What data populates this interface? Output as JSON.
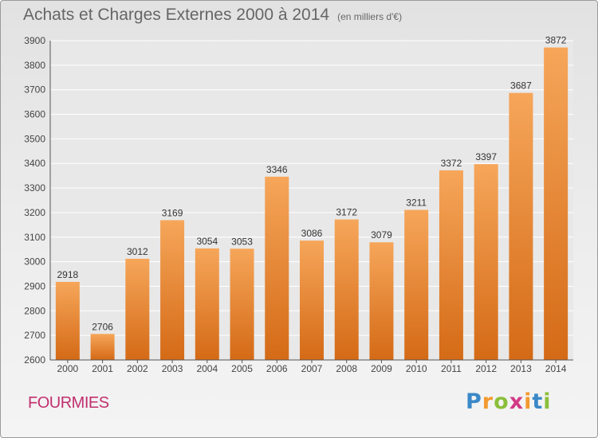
{
  "title": "Achats et Charges Externes 2000 à 2014",
  "subtitle": "(en milliers d'€)",
  "location": "FOURMIES",
  "brand": {
    "letters": [
      "P",
      "r",
      "o",
      "x",
      "i",
      "t",
      "i"
    ],
    "colors": [
      "#3a88c8",
      "#f29a2e",
      "#8bbf3a",
      "#d23b86",
      "#f29a2e",
      "#3a88c8",
      "#8bbf3a"
    ]
  },
  "colors": {
    "bar_top": "#f6a65a",
    "bar_bottom": "#d46a16",
    "grid": "#ffffff",
    "axis_text": "#444444"
  },
  "chart_data": {
    "type": "bar",
    "categories": [
      "2000",
      "2001",
      "2002",
      "2003",
      "2004",
      "2005",
      "2006",
      "2007",
      "2008",
      "2009",
      "2010",
      "2011",
      "2012",
      "2013",
      "2014"
    ],
    "values": [
      2918,
      2706,
      3012,
      3169,
      3054,
      3053,
      3346,
      3086,
      3172,
      3079,
      3211,
      3372,
      3397,
      3687,
      3872
    ],
    "ylim": [
      2600,
      3900
    ],
    "yticks": [
      2600,
      2700,
      2800,
      2900,
      3000,
      3100,
      3200,
      3300,
      3400,
      3500,
      3600,
      3700,
      3800,
      3900
    ],
    "grid": true,
    "data_labels": true
  }
}
